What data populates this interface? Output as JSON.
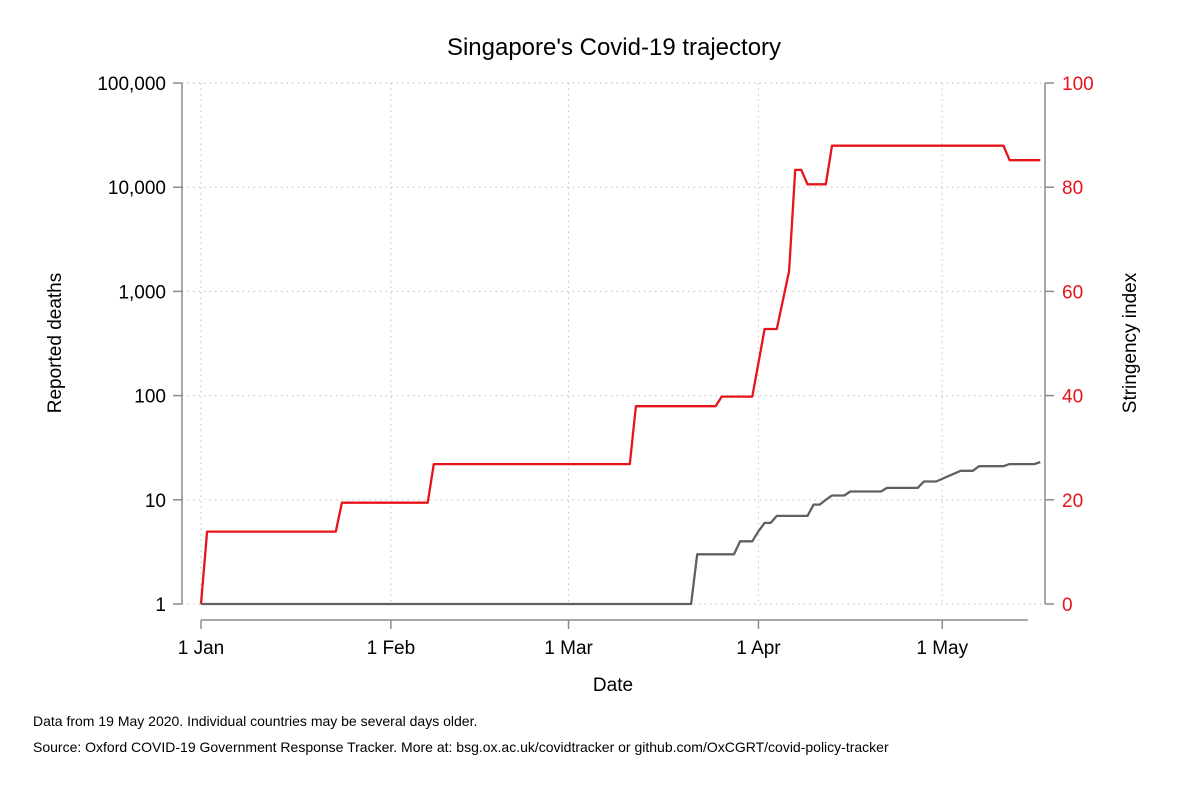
{
  "chart_data": {
    "type": "line",
    "title": "Singapore's Covid-19 trajectory",
    "xlabel": "Date",
    "ylabel_left": "Reported deaths",
    "ylabel_right": "Stringency index",
    "x_ticks": [
      "1 Jan",
      "1 Feb",
      "1 Mar",
      "1 Apr",
      "1 May"
    ],
    "y_left_ticks": [
      "1",
      "10",
      "100",
      "1,000",
      "10,000",
      "100,000"
    ],
    "y_left_tick_values": [
      1,
      10,
      100,
      1000,
      10000,
      100000
    ],
    "y_left_scale": "log",
    "y_left_lim": [
      1,
      100000
    ],
    "y_right_ticks": [
      "0",
      "20",
      "40",
      "60",
      "80",
      "100"
    ],
    "y_right_tick_values": [
      0,
      20,
      40,
      60,
      80,
      100
    ],
    "y_right_lim": [
      0,
      100
    ],
    "x_range": [
      "2020-01-01",
      "2020-05-15"
    ],
    "grid": true,
    "series": [
      {
        "name": "Stringency index",
        "axis": "right",
        "color": "#e8141c",
        "points": [
          [
            "2020-01-01",
            0
          ],
          [
            "2020-01-02",
            13.89
          ],
          [
            "2020-01-23",
            13.89
          ],
          [
            "2020-01-24",
            19.44
          ],
          [
            "2020-02-07",
            19.44
          ],
          [
            "2020-02-08",
            26.85
          ],
          [
            "2020-03-11",
            26.85
          ],
          [
            "2020-03-12",
            37.96
          ],
          [
            "2020-03-25",
            37.96
          ],
          [
            "2020-03-26",
            39.81
          ],
          [
            "2020-03-31",
            39.81
          ],
          [
            "2020-04-02",
            52.78
          ],
          [
            "2020-04-04",
            52.78
          ],
          [
            "2020-04-06",
            63.89
          ],
          [
            "2020-04-07",
            83.33
          ],
          [
            "2020-04-08",
            83.33
          ],
          [
            "2020-04-09",
            80.56
          ],
          [
            "2020-04-12",
            80.56
          ],
          [
            "2020-04-13",
            87.96
          ],
          [
            "2020-05-11",
            87.96
          ],
          [
            "2020-05-12",
            85.19
          ],
          [
            "2020-05-17",
            85.19
          ]
        ]
      },
      {
        "name": "Reported deaths",
        "axis": "left",
        "color": "#606060",
        "points": [
          [
            "2020-01-01",
            1
          ],
          [
            "2020-03-21",
            1
          ],
          [
            "2020-03-22",
            3
          ],
          [
            "2020-03-28",
            3
          ],
          [
            "2020-03-29",
            4
          ],
          [
            "2020-03-31",
            4
          ],
          [
            "2020-04-01",
            5
          ],
          [
            "2020-04-02",
            6
          ],
          [
            "2020-04-03",
            6
          ],
          [
            "2020-04-04",
            7
          ],
          [
            "2020-04-09",
            7
          ],
          [
            "2020-04-10",
            9
          ],
          [
            "2020-04-11",
            9
          ],
          [
            "2020-04-12",
            10
          ],
          [
            "2020-04-13",
            11
          ],
          [
            "2020-04-15",
            11
          ],
          [
            "2020-04-16",
            12
          ],
          [
            "2020-04-21",
            12
          ],
          [
            "2020-04-22",
            13
          ],
          [
            "2020-04-27",
            13
          ],
          [
            "2020-04-28",
            15
          ],
          [
            "2020-04-30",
            15
          ],
          [
            "2020-05-04",
            19
          ],
          [
            "2020-05-06",
            19
          ],
          [
            "2020-05-07",
            21
          ],
          [
            "2020-05-11",
            21
          ],
          [
            "2020-05-12",
            22
          ],
          [
            "2020-05-16",
            22
          ],
          [
            "2020-05-17",
            23
          ]
        ]
      }
    ]
  },
  "footer": {
    "note": "Data from 19 May 2020. Individual countries may be several days older.",
    "source": "Source: Oxford COVID-19 Government Response Tracker. More at: bsg.ox.ac.uk/covidtracker or github.com/OxCGRT/covid-policy-tracker"
  },
  "colors": {
    "stringency": "#e8141c",
    "deaths": "#606060",
    "axis": "#8c8c8c",
    "grid": "#c8c8c8"
  }
}
